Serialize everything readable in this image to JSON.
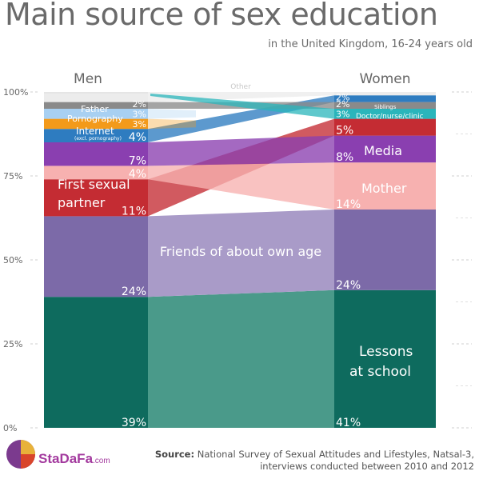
{
  "title": "Main source of sex education",
  "subtitle": "in the United Kingdom, 16-24 years old",
  "source_label": "Source:",
  "source_text": "National Survey of Sexual Attitudes and Lifestyles, Natsal-3, interviews conducted between 2010 and 2012",
  "logo": {
    "name": "StaDaFa",
    "suffix": ".com"
  },
  "colors": {
    "lessons": "#0e6b5e",
    "friends": "#7c6aa8",
    "first_sexual_partner": "#c42c33",
    "mother": "#f7b1b0",
    "media": "#8a3fb0",
    "internet": "#2e7cc0",
    "pornography": "#f39a1a",
    "father": "#a8d0f2",
    "doctor": "#2ab5bb",
    "siblings": "#8a8a8a",
    "other": "#ececec"
  },
  "chart_data": {
    "type": "stacked_bar",
    "categories": [
      "Men",
      "Women"
    ],
    "ylim": [
      0,
      100
    ],
    "yticks": [
      "0%",
      "25%",
      "50%",
      "75%",
      "100%"
    ],
    "grid": false,
    "series": [
      {
        "key": "lessons",
        "name": "Lessons at school",
        "values": [
          39,
          41
        ],
        "labels": [
          "39%",
          "41%"
        ]
      },
      {
        "key": "friends",
        "name": "Friends of about own age",
        "values": [
          24,
          24
        ],
        "labels": [
          "24%",
          "24%"
        ]
      },
      {
        "key": "first_sexual_partner",
        "name": "First sexual partner",
        "values": [
          11,
          0
        ],
        "labels": [
          "11%",
          ""
        ]
      },
      {
        "key": "mother",
        "name": "Mother",
        "values": [
          4,
          14
        ],
        "labels": [
          "4%",
          "14%"
        ]
      },
      {
        "key": "media",
        "name": "Media",
        "values": [
          7,
          8
        ],
        "labels": [
          "7%",
          "8%"
        ]
      },
      {
        "key": "first_sexual_partner_w",
        "name": "",
        "values": [
          0,
          5
        ],
        "labels": [
          "",
          "5%"
        ]
      },
      {
        "key": "internet",
        "name": "Internet",
        "values": [
          4,
          0
        ],
        "labels": [
          "4%",
          ""
        ]
      },
      {
        "key": "pornography",
        "name": "Pornography",
        "values": [
          3,
          0
        ],
        "labels": [
          "3%",
          ""
        ]
      },
      {
        "key": "father",
        "name": "Father",
        "values": [
          3,
          0
        ],
        "labels": [
          "3%",
          ""
        ]
      },
      {
        "key": "doctor",
        "name": "Doctor/nurse/clinic",
        "values": [
          0,
          3
        ],
        "labels": [
          "",
          "3%"
        ]
      },
      {
        "key": "siblings",
        "name": "Siblings",
        "values": [
          2,
          2
        ],
        "labels": [
          "2%",
          "2%"
        ]
      },
      {
        "key": "internet_w",
        "name": "",
        "values": [
          0,
          2
        ],
        "labels": [
          "",
          "2%"
        ]
      },
      {
        "key": "other",
        "name": "Other",
        "values": [
          3,
          1
        ],
        "labels": [
          "",
          ""
        ]
      }
    ],
    "internet_sublabel": "(excl. pornography)"
  }
}
